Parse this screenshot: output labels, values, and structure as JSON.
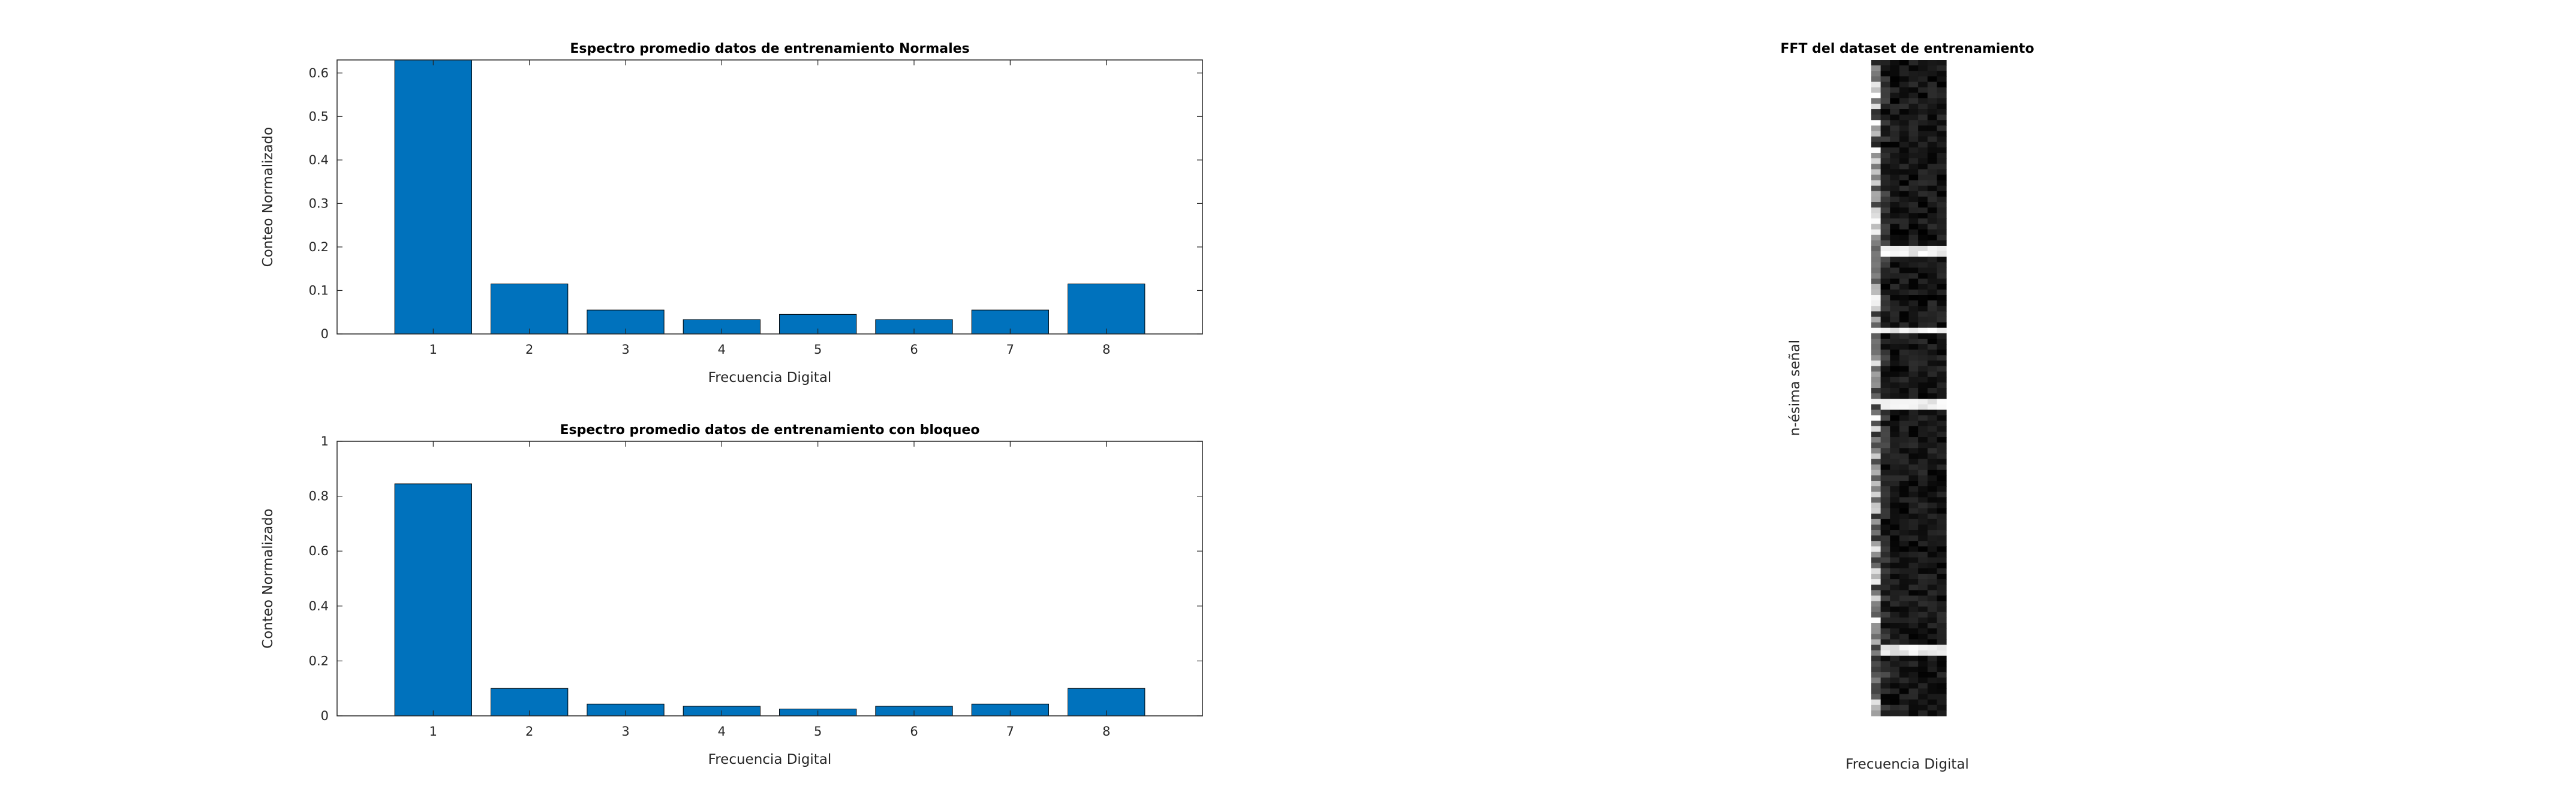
{
  "figure": {
    "title": "",
    "colors": {
      "bar": "#0072BD",
      "axis": "#262626",
      "background": "#FFFFFF"
    }
  },
  "chart_data": [
    {
      "type": "bar",
      "title": "Espectro promedio datos de entrenamiento Normales",
      "xlabel": "Frecuencia Digital",
      "ylabel": "Conteo Normalizado",
      "categories": [
        "1",
        "2",
        "3",
        "4",
        "5",
        "6",
        "7",
        "8"
      ],
      "values": [
        0.63,
        0.115,
        0.055,
        0.033,
        0.045,
        0.033,
        0.055,
        0.115
      ],
      "ylim": [
        0,
        0.63
      ],
      "yticks": [
        "0",
        "0.1",
        "0.2",
        "0.3",
        "0.4",
        "0.5",
        "0.6"
      ],
      "xlim": [
        0,
        9
      ],
      "grid": false,
      "color": "#0072BD"
    },
    {
      "type": "bar",
      "title": "Espectro promedio datos de entrenamiento con bloqueo",
      "xlabel": "Frecuencia Digital",
      "ylabel": "Conteo Normalizado",
      "categories": [
        "1",
        "2",
        "3",
        "4",
        "5",
        "6",
        "7",
        "8"
      ],
      "values": [
        0.845,
        0.1,
        0.043,
        0.035,
        0.025,
        0.035,
        0.043,
        0.1
      ],
      "ylim": [
        0,
        1
      ],
      "yticks": [
        "0",
        "0.2",
        "0.4",
        "0.6",
        "0.8",
        "1"
      ],
      "xlim": [
        0,
        9
      ],
      "grid": false,
      "color": "#0072BD"
    },
    {
      "type": "heatmap",
      "title": "FFT del dataset de entrenamiento",
      "xlabel": "Frecuencia Digital",
      "ylabel": "n-ésima señal",
      "colormap": "gray",
      "columns": 8,
      "rows": 120
    }
  ]
}
